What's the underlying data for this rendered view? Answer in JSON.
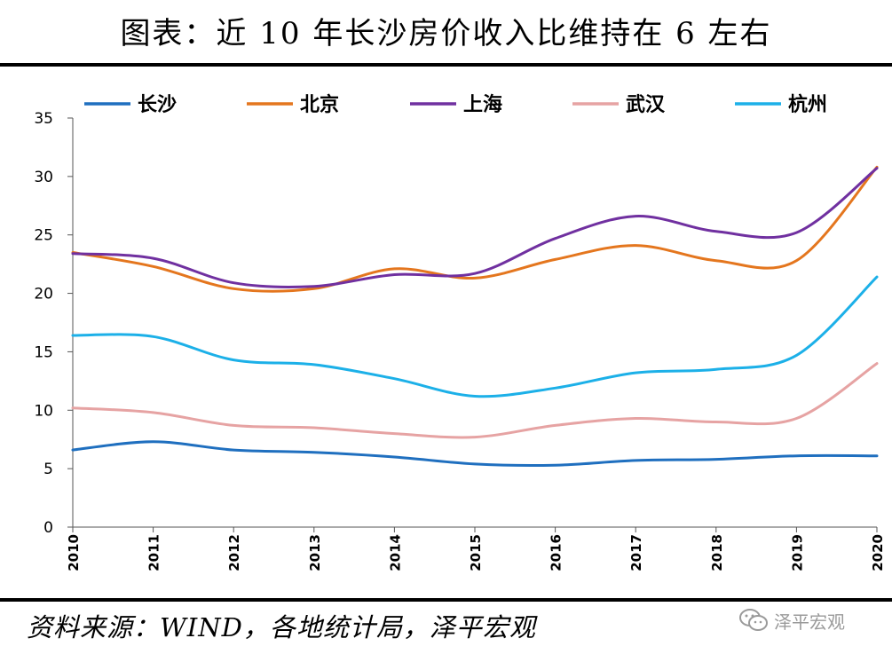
{
  "title": "图表：近 10 年长沙房价收入比维持在 6 左右",
  "source": "资料来源：WIND，各地统计局，泽平宏观",
  "watermark": {
    "text": "泽平宏观",
    "icon": "wechat-icon"
  },
  "chart_data": {
    "type": "line",
    "title": "",
    "xlabel": "",
    "ylabel": "",
    "x": [
      2010,
      2011,
      2012,
      2013,
      2014,
      2015,
      2016,
      2017,
      2018,
      2019,
      2020
    ],
    "ylim": [
      0,
      35
    ],
    "yticks": [
      0,
      5,
      10,
      15,
      20,
      25,
      30,
      35
    ],
    "legend_position": "top",
    "grid": false,
    "series": [
      {
        "name": "长沙",
        "color": "#1F6FBF",
        "values": [
          6.6,
          7.3,
          6.6,
          6.4,
          6.0,
          5.4,
          5.3,
          5.7,
          5.8,
          6.1,
          6.1
        ]
      },
      {
        "name": "北京",
        "color": "#E4761E",
        "values": [
          23.5,
          22.3,
          20.4,
          20.4,
          22.1,
          21.3,
          22.9,
          24.1,
          22.8,
          22.8,
          30.8
        ]
      },
      {
        "name": "上海",
        "color": "#7030A0",
        "values": [
          23.4,
          23.0,
          20.9,
          20.6,
          21.6,
          21.7,
          24.7,
          26.6,
          25.3,
          25.2,
          30.7
        ]
      },
      {
        "name": "武汉",
        "color": "#E6A3A3",
        "values": [
          10.2,
          9.8,
          8.7,
          8.5,
          8.0,
          7.7,
          8.7,
          9.3,
          9.0,
          9.3,
          14.0
        ]
      },
      {
        "name": "杭州",
        "color": "#1CB0E8",
        "values": [
          16.4,
          16.3,
          14.3,
          13.9,
          12.7,
          11.2,
          11.9,
          13.2,
          13.5,
          14.7,
          21.4
        ]
      }
    ]
  }
}
